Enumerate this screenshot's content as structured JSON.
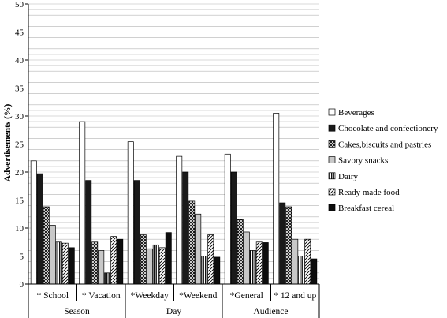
{
  "chart_data": {
    "type": "bar",
    "ylabel": "Advertisements (%)",
    "ylim": [
      0,
      50
    ],
    "yticks": [
      0,
      5,
      10,
      15,
      20,
      25,
      30,
      35,
      40,
      45,
      50
    ],
    "minor_grid_step": 1,
    "grid": true,
    "legend_position": "right",
    "categories": [
      "* School",
      "* Vacation",
      "*Weekday",
      "*Weekend",
      "*General",
      "* 12 and up"
    ],
    "groups": [
      {
        "label": "Season",
        "categories": [
          0,
          1
        ]
      },
      {
        "label": "Day",
        "categories": [
          2,
          3
        ]
      },
      {
        "label": "Audience",
        "categories": [
          4,
          5
        ]
      }
    ],
    "series": [
      {
        "name": "Beverages",
        "pattern": "white",
        "values": [
          22,
          29,
          25.4,
          22.8,
          23.2,
          30.5
        ]
      },
      {
        "name": "Chocolate and confectionery",
        "pattern": "black",
        "values": [
          19.7,
          18.5,
          18.5,
          20,
          20,
          14.5
        ]
      },
      {
        "name": "Cakes,biscuits and pastries",
        "pattern": "diagcross",
        "values": [
          13.8,
          7.5,
          8.8,
          14.8,
          11.5,
          13.8
        ]
      },
      {
        "name": "Savory snacks",
        "pattern": "lightgray",
        "values": [
          10.5,
          6,
          6.3,
          12.5,
          9.3,
          8
        ]
      },
      {
        "name": "Dairy",
        "pattern": "vertical",
        "values": [
          7.5,
          2,
          7,
          5,
          6,
          5
        ]
      },
      {
        "name": "Ready made food",
        "pattern": "diagonal",
        "values": [
          7.3,
          8.5,
          6.5,
          8.8,
          7.5,
          8
        ]
      },
      {
        "name": "Breakfast cereal",
        "pattern": "darkblack",
        "values": [
          6.5,
          8,
          9.2,
          4.8,
          7.4,
          4.5
        ]
      }
    ]
  }
}
